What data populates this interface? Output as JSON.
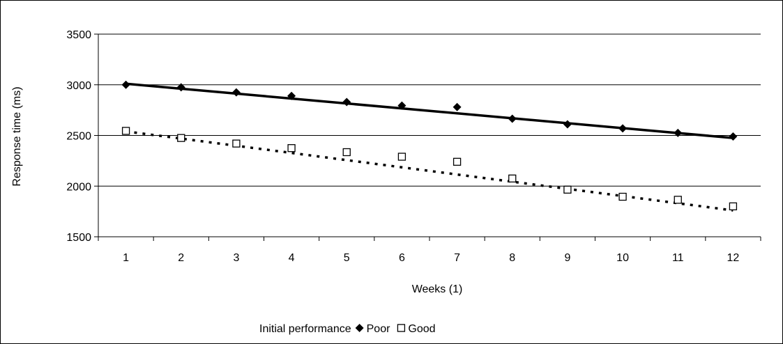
{
  "chart_data": {
    "type": "line",
    "x": [
      1,
      2,
      3,
      4,
      5,
      6,
      7,
      8,
      9,
      10,
      11,
      12
    ],
    "categories": [
      "1",
      "2",
      "3",
      "4",
      "5",
      "6",
      "7",
      "8",
      "9",
      "10",
      "11",
      "12"
    ],
    "series": [
      {
        "name": "Poor",
        "marker": "diamond",
        "values": [
          3000,
          2975,
          2925,
          2890,
          2830,
          2795,
          2780,
          2665,
          2610,
          2570,
          2525,
          2490
        ],
        "trendline": {
          "style": "solid",
          "start": 3010,
          "end": 2475
        }
      },
      {
        "name": "Good",
        "marker": "square-open",
        "values": [
          2545,
          2475,
          2420,
          2375,
          2335,
          2290,
          2240,
          2075,
          1965,
          1895,
          1865,
          1800
        ],
        "trendline": {
          "style": "dotted",
          "start": 2540,
          "end": 1760
        }
      }
    ],
    "xlabel": "Weeks (1)",
    "ylabel": "Response time (ms)",
    "ylim": [
      1500,
      3500
    ],
    "yticks": [
      1500,
      2000,
      2500,
      3000,
      3500
    ],
    "grid": true,
    "legend_title": "Initial performance",
    "legend_position": "bottom",
    "colors": {
      "series": "#000000",
      "grid": "#000000",
      "background": "#ffffff"
    }
  }
}
